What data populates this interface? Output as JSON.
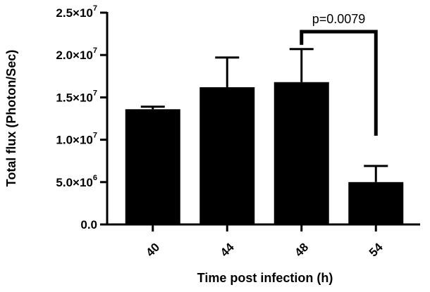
{
  "chart_data": {
    "type": "bar",
    "title": "",
    "xlabel": "Time post infection (h)",
    "ylabel": "Total flux (Photon/Sec)",
    "categories": [
      "40",
      "44",
      "48",
      "54"
    ],
    "values": [
      13600000,
      16200000,
      16800000,
      5000000
    ],
    "errors": [
      300000,
      3500000,
      3900000,
      1900000
    ],
    "ylim": [
      0,
      25000000
    ],
    "yticks": [
      {
        "value": 0,
        "mantissa": "0.0",
        "exponent": ""
      },
      {
        "value": 5000000,
        "mantissa": "5.0×10",
        "exponent": "6"
      },
      {
        "value": 10000000,
        "mantissa": "1.0×10",
        "exponent": "7"
      },
      {
        "value": 15000000,
        "mantissa": "1.5×10",
        "exponent": "7"
      },
      {
        "value": 20000000,
        "mantissa": "2.0×10",
        "exponent": "7"
      },
      {
        "value": 25000000,
        "mantissa": "2.5×10",
        "exponent": "7"
      }
    ],
    "bar_color": "#000000",
    "grid": false,
    "legend": "none",
    "annotations": [
      {
        "type": "significance",
        "from": "48",
        "to": "54",
        "text": "p=0.0079"
      }
    ]
  }
}
